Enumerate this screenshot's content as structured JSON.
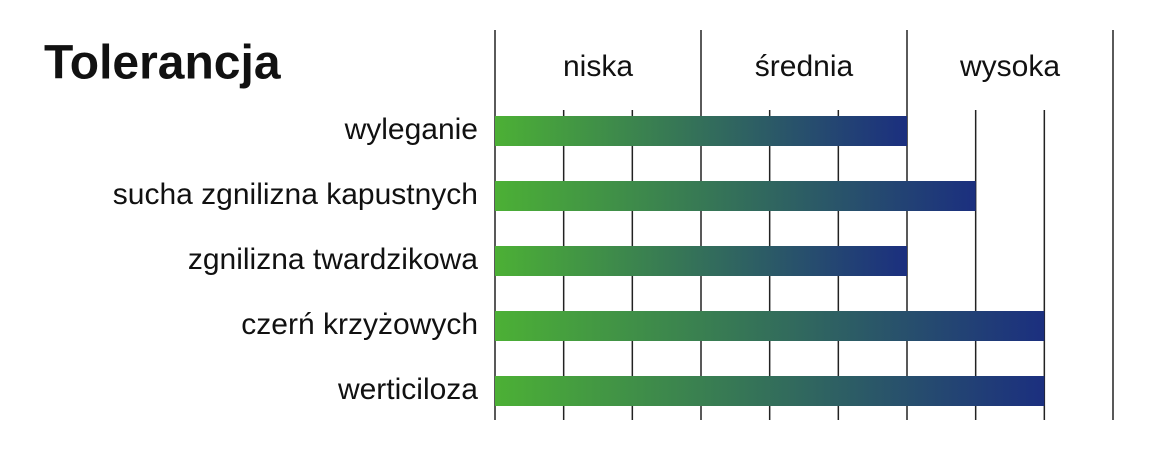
{
  "chart_data": {
    "type": "bar",
    "orientation": "horizontal",
    "title": "Tolerancja",
    "categories": [
      "wyleganie",
      "sucha zgnilizna kapustnych",
      "zgnilizna twardzikowa",
      "czerń krzyżowych",
      "werticiloza"
    ],
    "values": [
      6,
      7,
      6,
      8,
      8
    ],
    "color": [
      "#4cb035",
      "#1b2f7f"
    ],
    "xlim": [
      0,
      9
    ],
    "xticks": [
      0,
      1,
      2,
      3,
      4,
      5,
      6,
      7,
      8,
      9
    ],
    "grid": true,
    "bands": [
      {
        "label": "niska",
        "from": 0,
        "to": 3
      },
      {
        "label": "średnia",
        "from": 3,
        "to": 6
      },
      {
        "label": "wysoka",
        "from": 6,
        "to": 9
      }
    ]
  }
}
